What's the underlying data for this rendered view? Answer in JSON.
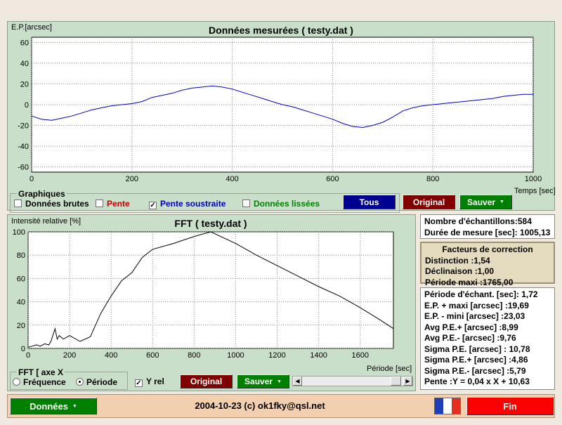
{
  "top_chart": {
    "title": "Données mesurées ( testy.dat )",
    "ylabel": "E.P.[arcsec]",
    "xlabel": "Temps [sec]",
    "xlim": [
      0,
      1000
    ],
    "ylim": [
      -65,
      65
    ],
    "xticks": [
      "0",
      "200",
      "400",
      "600",
      "800",
      "1000"
    ],
    "yticks": [
      "60",
      "40",
      "20",
      "0",
      "-20",
      "-40",
      "-60"
    ],
    "line_color": "#0000c0"
  },
  "graphiques": {
    "title": "Graphiques",
    "options": [
      {
        "label": "Données brutes",
        "checked": false,
        "color": "#000000"
      },
      {
        "label": "Pente",
        "checked": false,
        "color": "#c00000"
      },
      {
        "label": "Pente soustraite",
        "checked": true,
        "color": "#0000c0"
      },
      {
        "label": "Données lissées",
        "checked": false,
        "color": "#008000"
      }
    ],
    "tous_label": "Tous",
    "original_label": "Original",
    "sauver_label": "Sauver"
  },
  "fft_chart": {
    "title": "FFT ( testy.dat )",
    "ylabel": "Intensité relative [%]",
    "xlabel": "Période [sec]",
    "xlim": [
      0,
      1760
    ],
    "ylim": [
      0,
      100
    ],
    "xticks": [
      "0",
      "200",
      "400",
      "600",
      "800",
      "1000",
      "1200",
      "1400",
      "1600"
    ],
    "yticks": [
      "100",
      "80",
      "60",
      "40",
      "20",
      "0"
    ],
    "line_color": "#000000"
  },
  "fft_controls": {
    "axis_title": "FFT [ axe X",
    "frequence_label": "Fréquence",
    "periode_label": "Période",
    "yrel_label": "Y rel",
    "original_label": "Original",
    "sauver_label": "Sauver"
  },
  "stats_box1": {
    "echantillons": "Nombre d'échantillons:584",
    "duree": "Durée de mesure [sec]: 1005,13"
  },
  "stats_box2": {
    "title": "Facteurs de correction",
    "distinction": "Distinction :1,54",
    "declinaison": "Déclinaison :1,00",
    "periode_maxi": "Période maxi :1765,00"
  },
  "stats_box3": {
    "lines": [
      "Période d'échant. [sec]: 1,72",
      "E.P. + maxi [arcsec] :19,69",
      "E.P. - mini [arcsec] :23,03",
      "Avg P.E.+ [arcsec] :8,99",
      "Avg P.E.- [arcsec] :9,76",
      "Sigma P.E. [arcsec] : 10,78",
      "Sigma P.E.+ [arcsec] :4,86",
      "Sigma P.E.- [arcsec] :5,79",
      "Pente :Y = 0,04 x X + 10,63"
    ]
  },
  "footer": {
    "donnees_label": "Données",
    "copyright": "2004-10-23 (c) ok1fky@qsl.net",
    "fin_label": "Fin",
    "colors": {
      "green": "#008000",
      "red": "#ff0000",
      "darkred": "#800000",
      "navy": "#000090"
    }
  },
  "chart_data": [
    {
      "type": "line",
      "title": "Données mesurées ( testy.dat )",
      "xlabel": "Temps [sec]",
      "ylabel": "E.P.[arcsec]",
      "xlim": [
        0,
        1000
      ],
      "ylim": [
        -65,
        65
      ],
      "grid": true,
      "series": [
        {
          "x": [
            0,
            20,
            40,
            60,
            80,
            100,
            120,
            140,
            160,
            180,
            200,
            220,
            240,
            260,
            280,
            300,
            320,
            340,
            360,
            380,
            400,
            420,
            440,
            460,
            480,
            500,
            520,
            540,
            560,
            580,
            600,
            620,
            640,
            660,
            680,
            700,
            720,
            740,
            760,
            780,
            800,
            820,
            840,
            860,
            880,
            900,
            920,
            940,
            960,
            980,
            1000
          ],
          "y": [
            -11,
            -14,
            -15,
            -13,
            -11,
            -8,
            -5,
            -3,
            -1,
            0,
            1,
            3,
            7,
            9,
            11,
            14,
            16,
            17,
            18,
            17,
            15,
            12,
            9,
            6,
            3,
            0,
            -2,
            -5,
            -8,
            -11,
            -14,
            -18,
            -21,
            -22,
            -20,
            -17,
            -12,
            -6,
            -3,
            -1,
            0,
            1,
            2,
            3,
            4,
            5,
            6,
            8,
            9,
            10,
            10
          ]
        }
      ]
    },
    {
      "type": "line",
      "title": "FFT ( testy.dat )",
      "xlabel": "Période [sec]",
      "ylabel": "Intensité relative [%]",
      "xlim": [
        0,
        1760
      ],
      "ylim": [
        0,
        100
      ],
      "grid": true,
      "series": [
        {
          "x": [
            0,
            20,
            40,
            60,
            80,
            100,
            110,
            130,
            140,
            150,
            170,
            200,
            250,
            300,
            350,
            400,
            450,
            500,
            550,
            600,
            700,
            800,
            880,
            1000,
            1100,
            1200,
            1300,
            1400,
            1500,
            1600,
            1700,
            1760
          ],
          "y": [
            1,
            2,
            3,
            2,
            4,
            3,
            6,
            17,
            8,
            11,
            8,
            11,
            6,
            10,
            30,
            45,
            58,
            65,
            78,
            85,
            90,
            96,
            100,
            90,
            80,
            71,
            62,
            53,
            45,
            35,
            24,
            17
          ]
        }
      ]
    }
  ]
}
